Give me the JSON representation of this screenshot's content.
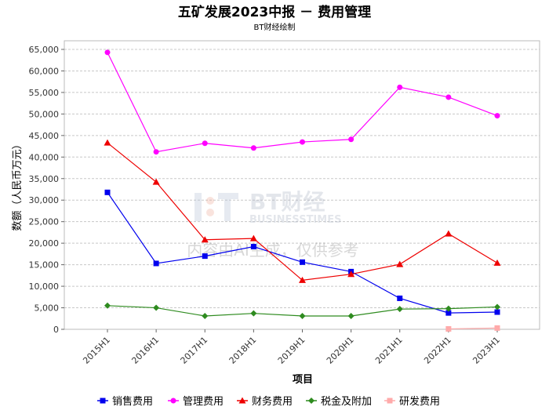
{
  "chart_data": {
    "type": "line",
    "title": "五矿发展2023中报 － 费用管理",
    "subtitle": "BT财经绘制",
    "xlabel": "项目",
    "ylabel": "数额（人民币万元）",
    "ylim": [
      0,
      67000
    ],
    "yticks": [
      0,
      5000,
      10000,
      15000,
      20000,
      25000,
      30000,
      35000,
      40000,
      45000,
      50000,
      55000,
      60000,
      65000
    ],
    "ytick_labels": [
      "0",
      "5,000",
      "10,000",
      "15,000",
      "20,000",
      "25,000",
      "30,000",
      "35,000",
      "40,000",
      "45,000",
      "50,000",
      "55,000",
      "60,000",
      "65,000"
    ],
    "categories": [
      "2015H1",
      "2016H1",
      "2017H1",
      "2018H1",
      "2019H1",
      "2020H1",
      "2021H1",
      "2022H1",
      "2023H1"
    ],
    "grid": true,
    "legend_position": "bottom",
    "series": [
      {
        "name": "销售费用",
        "color": "#0000ee",
        "marker": "square",
        "values": [
          31800,
          15300,
          17000,
          19200,
          15600,
          13400,
          7200,
          3800,
          4000
        ]
      },
      {
        "name": "管理费用",
        "color": "#ff00ff",
        "marker": "circle",
        "values": [
          64300,
          41200,
          43200,
          42100,
          43500,
          44100,
          56200,
          53900,
          49600
        ]
      },
      {
        "name": "财务费用",
        "color": "#ee0000",
        "marker": "triangle",
        "values": [
          43300,
          34200,
          20800,
          21100,
          11400,
          12800,
          15100,
          22200,
          15400
        ]
      },
      {
        "name": "税金及附加",
        "color": "#2e8b1f",
        "marker": "diamond",
        "values": [
          5500,
          5000,
          3100,
          3700,
          3100,
          3100,
          4700,
          4800,
          5200
        ]
      },
      {
        "name": "研发费用",
        "color": "#ffaaaa",
        "marker": "square",
        "values": [
          null,
          null,
          null,
          null,
          null,
          null,
          null,
          100,
          300
        ]
      }
    ]
  },
  "watermark": {
    "brand": "BT财经",
    "brand_en": "BUSINESSTIMES",
    "notice": "内容由AI生成，仅供参考"
  }
}
